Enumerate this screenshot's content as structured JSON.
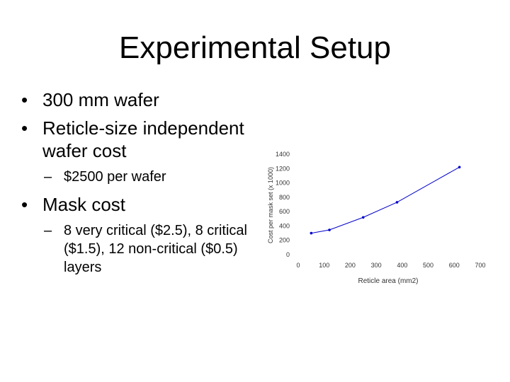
{
  "slide": {
    "title": "Experimental Setup",
    "bullets": [
      {
        "text": "300 mm wafer",
        "sub": []
      },
      {
        "text": "Reticle-size independent wafer cost",
        "sub": [
          "$2500 per wafer"
        ]
      },
      {
        "text": "Mask cost",
        "sub": [
          "8 very critical ($2.5), 8 critical ($1.5), 12 non-critical ($0.5) layers"
        ]
      }
    ]
  },
  "chart_data": {
    "type": "line",
    "title": "",
    "xlabel": "Reticle area (mm2)",
    "ylabel": "Cost per mask set (x 1000)",
    "xlim": [
      0,
      700
    ],
    "ylim": [
      0,
      1400
    ],
    "x_ticks": [
      "0",
      "100",
      "200",
      "300",
      "400",
      "500",
      "600",
      "700"
    ],
    "y_ticks": [
      "0",
      "200",
      "400",
      "600",
      "800",
      "1000",
      "1200",
      "1400"
    ],
    "x": [
      50,
      120,
      250,
      380,
      620
    ],
    "y": [
      300,
      345,
      520,
      730,
      1220
    ],
    "grid": false,
    "line_color": "#0000cc"
  }
}
